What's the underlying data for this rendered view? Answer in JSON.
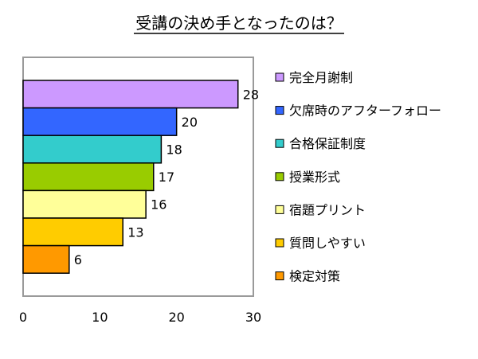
{
  "chart_data": {
    "type": "bar",
    "orientation": "horizontal",
    "title": "受講の決め手となったのは？",
    "xlim": [
      0,
      30
    ],
    "xticks": [
      0,
      10,
      20,
      30
    ],
    "grid": false,
    "legend_position": "right",
    "series": [
      {
        "name": "完全月謝制",
        "value": 28,
        "color": "#CC99FF"
      },
      {
        "name": "欠席時のアフターフォロー",
        "value": 20,
        "color": "#3366FF"
      },
      {
        "name": "合格保証制度",
        "value": 18,
        "color": "#33CCCC"
      },
      {
        "name": "授業形式",
        "value": 17,
        "color": "#99CC00"
      },
      {
        "name": "宿題プリント",
        "value": 16,
        "color": "#FFFF99"
      },
      {
        "name": "質問しやすい",
        "value": 13,
        "color": "#FFCC00"
      },
      {
        "name": "検定対策",
        "value": 6,
        "color": "#FF9900"
      }
    ]
  }
}
